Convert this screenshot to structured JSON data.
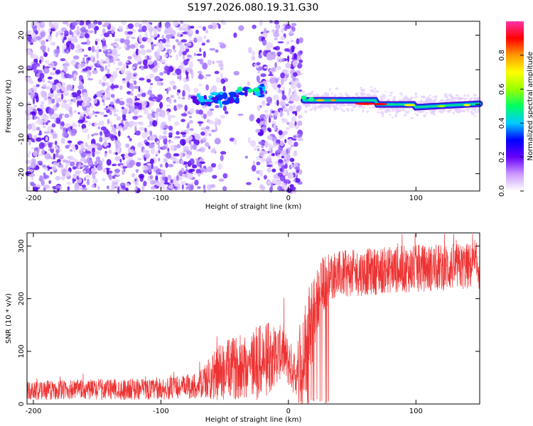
{
  "title": "S197.2026.080.19.31.G30",
  "chart_data": [
    {
      "type": "heatmap",
      "title": "S197.2026.080.19.31.G30",
      "xlabel": "Height of straight line (km)",
      "ylabel": "Frequency (Hz)",
      "xlim": [
        -205,
        150
      ],
      "ylim": [
        -25,
        24
      ],
      "xticks": [
        -200,
        -100,
        0,
        100
      ],
      "yticks": [
        -20,
        -10,
        0,
        10,
        20
      ],
      "colorbar": {
        "label": "Normalized spectral amplitude",
        "range": [
          0.0,
          1.0
        ],
        "ticks": [
          0.0,
          0.2,
          0.4,
          0.6,
          0.8
        ],
        "tick_labels": [
          "0.0",
          "0.2",
          "0.4",
          "0.6",
          "0.8"
        ],
        "colors": [
          "#ffffff",
          "#cc99ff",
          "#6600ff",
          "#0000ff",
          "#00ccff",
          "#00ff66",
          "#99ff00",
          "#ffff00",
          "#ff9900",
          "#ff0000",
          "#ff33aa"
        ]
      },
      "signal_track": [
        {
          "x": -72,
          "freq": 2,
          "amp": 0.25
        },
        {
          "x": -60,
          "freq": 1,
          "amp": 0.3
        },
        {
          "x": -50,
          "freq": 3,
          "amp": 0.3
        },
        {
          "x": -38,
          "freq": 4,
          "amp": 0.35
        },
        {
          "x": -28,
          "freq": 4,
          "amp": 0.35
        },
        {
          "x": 12,
          "freq": 2,
          "amp": 0.4
        },
        {
          "x": 20,
          "freq": 1,
          "amp": 0.55
        },
        {
          "x": 40,
          "freq": 1,
          "amp": 0.6
        },
        {
          "x": 70,
          "freq": 0,
          "amp": 0.95
        },
        {
          "x": 100,
          "freq": -1,
          "amp": 0.6
        },
        {
          "x": 140,
          "freq": 0,
          "amp": 0.6
        }
      ]
    },
    {
      "type": "line",
      "title": "",
      "xlabel": "Height of straight line (km)",
      "ylabel": "SNR (10 * v/v)",
      "xlim": [
        -205,
        150
      ],
      "ylim": [
        0,
        325
      ],
      "xticks": [
        -200,
        -100,
        0,
        100
      ],
      "yticks": [
        0,
        100,
        200,
        300
      ],
      "series": [
        {
          "name": "SNR",
          "color": "#ee3333",
          "envelope": [
            {
              "x": -205,
              "mean": 25,
              "spread": 18
            },
            {
              "x": -150,
              "mean": 28,
              "spread": 20
            },
            {
              "x": -100,
              "mean": 28,
              "spread": 20
            },
            {
              "x": -70,
              "mean": 35,
              "spread": 25
            },
            {
              "x": -55,
              "mean": 60,
              "spread": 55
            },
            {
              "x": -40,
              "mean": 70,
              "spread": 60
            },
            {
              "x": -20,
              "mean": 80,
              "spread": 75
            },
            {
              "x": -5,
              "mean": 100,
              "spread": 50
            },
            {
              "x": 5,
              "mean": 60,
              "spread": 45
            },
            {
              "x": 15,
              "mean": 120,
              "spread": 100
            },
            {
              "x": 25,
              "mean": 220,
              "spread": 60
            },
            {
              "x": 35,
              "mean": 245,
              "spread": 45
            },
            {
              "x": 80,
              "mean": 255,
              "spread": 45
            },
            {
              "x": 150,
              "mean": 262,
              "spread": 45
            }
          ]
        }
      ]
    }
  ]
}
